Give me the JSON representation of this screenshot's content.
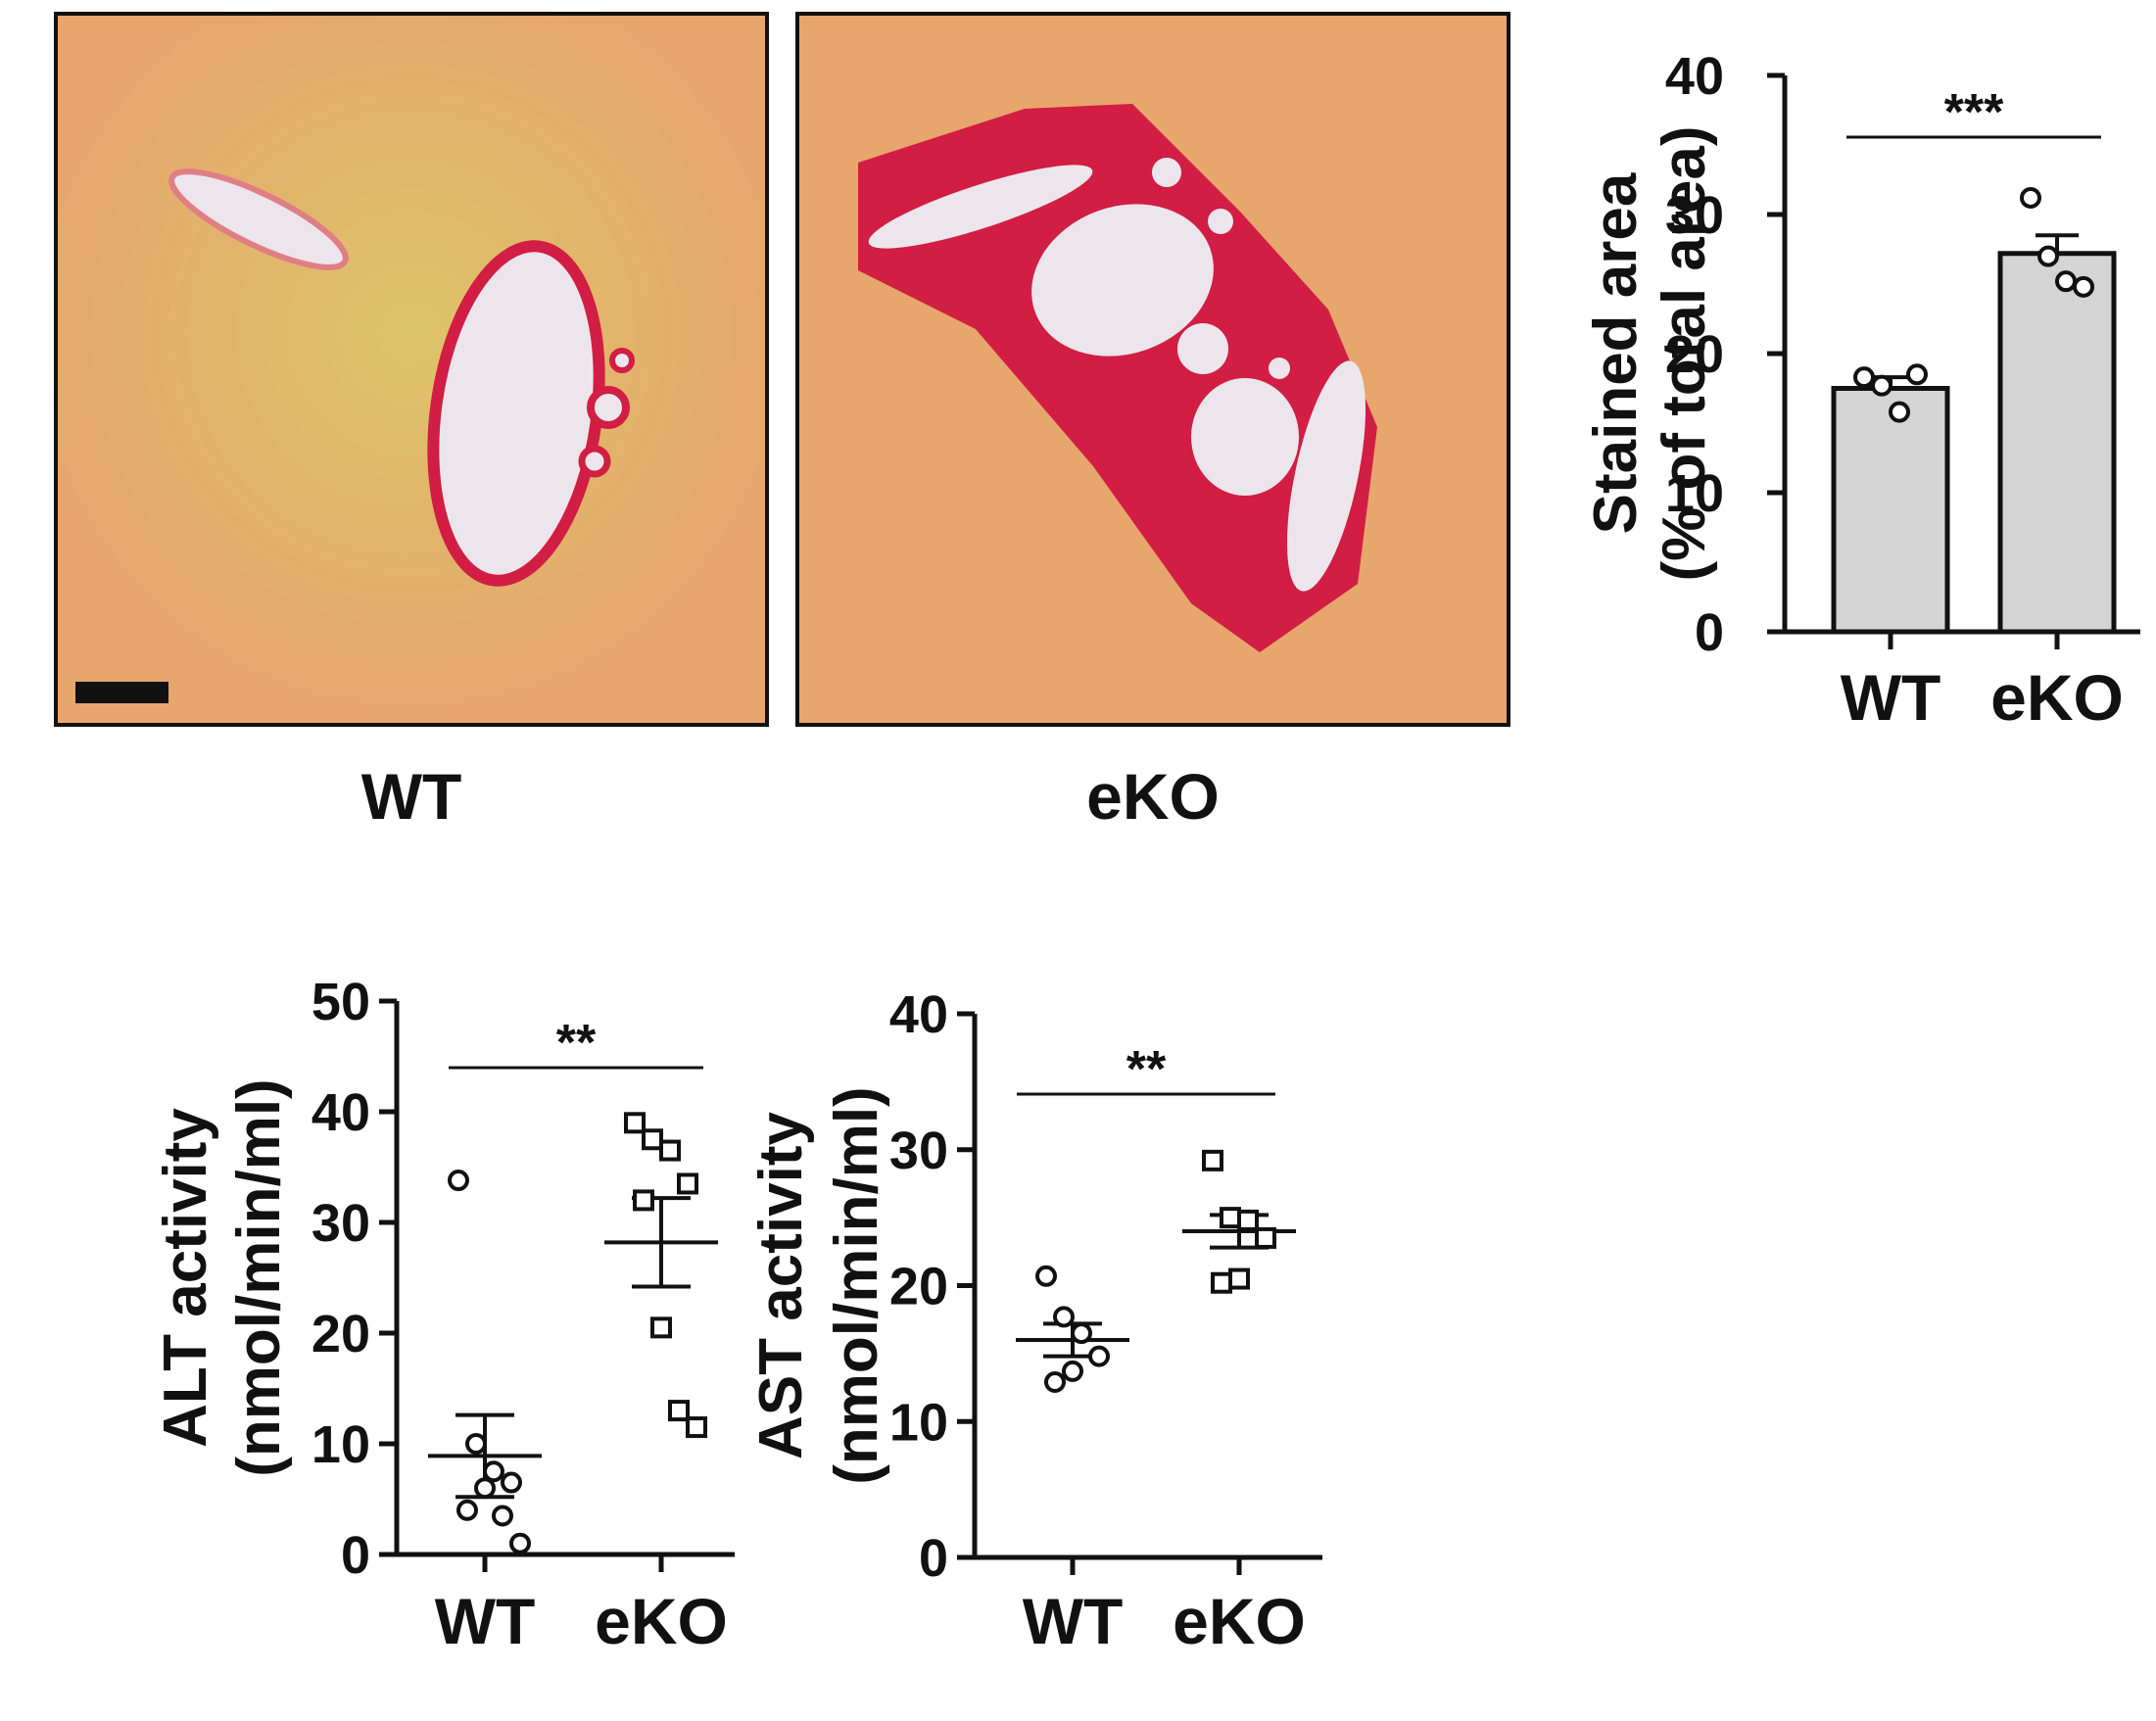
{
  "panels": {
    "wt_label": "WT",
    "eko_label": "eKO"
  },
  "colors": {
    "tissue": "#e7a66c",
    "collagen": "#d21d44",
    "lumen": "#ece6ec",
    "bar_fill": "#d4d4d4",
    "ink": "#111111"
  },
  "chart_data": [
    {
      "id": "stained-area",
      "type": "bar",
      "ylabel_line1": "Stained area",
      "ylabel_line2": "(% of total area)",
      "ylim": [
        0,
        40
      ],
      "yticks": [
        0,
        10,
        20,
        30,
        40
      ],
      "categories": [
        "WT",
        "eKO"
      ],
      "means": [
        17.5,
        27.2
      ],
      "sem": [
        0.8,
        1.3
      ],
      "points": [
        [
          18.3,
          17.7,
          15.8,
          18.5
        ],
        [
          31.2,
          27.0,
          25.2,
          24.8
        ]
      ],
      "significance": "***"
    },
    {
      "id": "alt-activity",
      "type": "scatter",
      "ylabel_line1": "ALT activity",
      "ylabel_line2": "(nmol/min/ml)",
      "ylim": [
        0,
        50
      ],
      "yticks": [
        0,
        10,
        20,
        30,
        40,
        50
      ],
      "categories": [
        "WT",
        "eKO"
      ],
      "marker": [
        "circle",
        "square"
      ],
      "means": [
        8.9,
        28.2
      ],
      "sem": [
        3.7,
        4.0
      ],
      "points": [
        [
          33.8,
          10.0,
          7.5,
          6.5,
          4.0,
          6.0,
          3.5,
          1.0
        ],
        [
          39.0,
          37.5,
          36.5,
          33.5,
          32.0,
          20.5,
          13.0,
          11.5
        ]
      ],
      "significance": "**"
    },
    {
      "id": "ast-activity",
      "type": "scatter",
      "ylabel_line1": "AST activity",
      "ylabel_line2": "(nmol/min/ml)",
      "ylim": [
        0,
        40
      ],
      "yticks": [
        0,
        10,
        20,
        30,
        40
      ],
      "categories": [
        "WT",
        "eKO"
      ],
      "marker": [
        "circle",
        "square"
      ],
      "means": [
        16.0,
        24.0
      ],
      "sem": [
        1.2,
        1.2
      ],
      "points": [
        [
          20.7,
          17.7,
          16.5,
          14.8,
          12.9,
          13.7
        ],
        [
          29.2,
          25.0,
          24.8,
          23.5,
          20.2,
          20.5
        ]
      ],
      "significance": "**"
    }
  ]
}
